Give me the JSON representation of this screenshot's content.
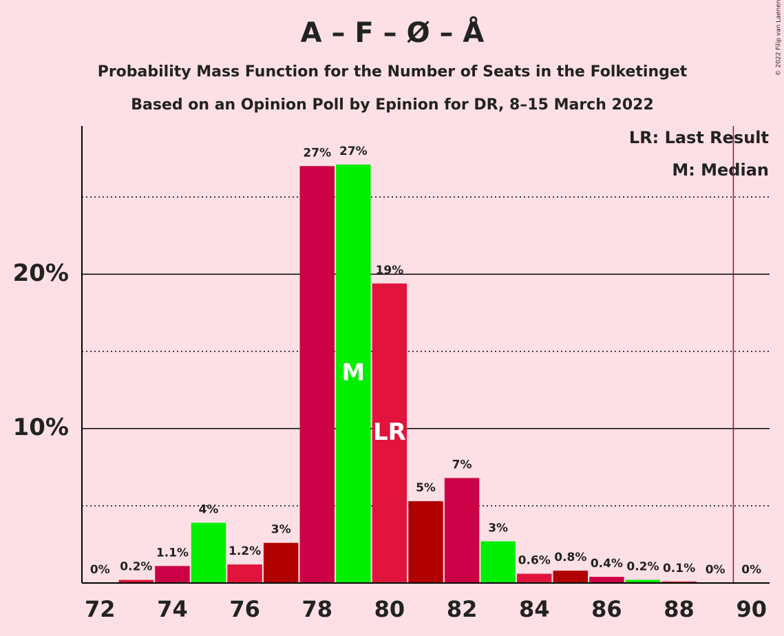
{
  "chart_data": {
    "type": "bar",
    "title": "A – F – Ø – Å",
    "subtitle": "Probability Mass Function for the Number of Seats in the Folketinget",
    "subtitle2": "Based on an Opinion Poll by Epinion for DR, 8–15 March 2022",
    "copyright": "© 2022 Filip van Laenen",
    "legend_lr": "LR: Last Result",
    "legend_median": "M: Median",
    "x": [
      72,
      73,
      74,
      75,
      76,
      77,
      78,
      79,
      80,
      81,
      82,
      83,
      84,
      85,
      86,
      87,
      88,
      89,
      90
    ],
    "values": [
      0,
      0.2,
      1.1,
      3.9,
      1.2,
      2.6,
      27.0,
      27.1,
      19.4,
      5.3,
      6.8,
      2.7,
      0.6,
      0.8,
      0.4,
      0.2,
      0.1,
      0,
      0
    ],
    "value_labels": [
      "0%",
      "0.2%",
      "1.1%",
      "4%",
      "1.2%",
      "3%",
      "27%",
      "27%",
      "19%",
      "5%",
      "7%",
      "3%",
      "0.6%",
      "0.8%",
      "0.4%",
      "0.2%",
      "0.1%",
      "0%",
      "0%"
    ],
    "colors": [
      "#e0143c",
      "#e0143c",
      "#cc0047",
      "#00ee00",
      "#e0143c",
      "#b00000",
      "#cc0047",
      "#00ee00",
      "#e0143c",
      "#b00000",
      "#cc0047",
      "#00ee00",
      "#e0143c",
      "#b00000",
      "#cc0047",
      "#00ee00",
      "#e0143c",
      "#b00000",
      "#cc0047"
    ],
    "xlim": [
      71.5,
      90.5
    ],
    "xticks": [
      72,
      74,
      76,
      78,
      80,
      82,
      84,
      86,
      88,
      90
    ],
    "ylim": [
      0,
      29.6
    ],
    "yticks": [
      {
        "value": 10,
        "label": "10%"
      },
      {
        "value": 20,
        "label": "20%"
      }
    ],
    "minor_yticks": [
      5,
      15,
      25
    ],
    "median": 79,
    "median_label": "M",
    "last_result": 80,
    "last_result_label": "LR",
    "majority_line": 89.5,
    "majority_color": "#b0004a"
  }
}
